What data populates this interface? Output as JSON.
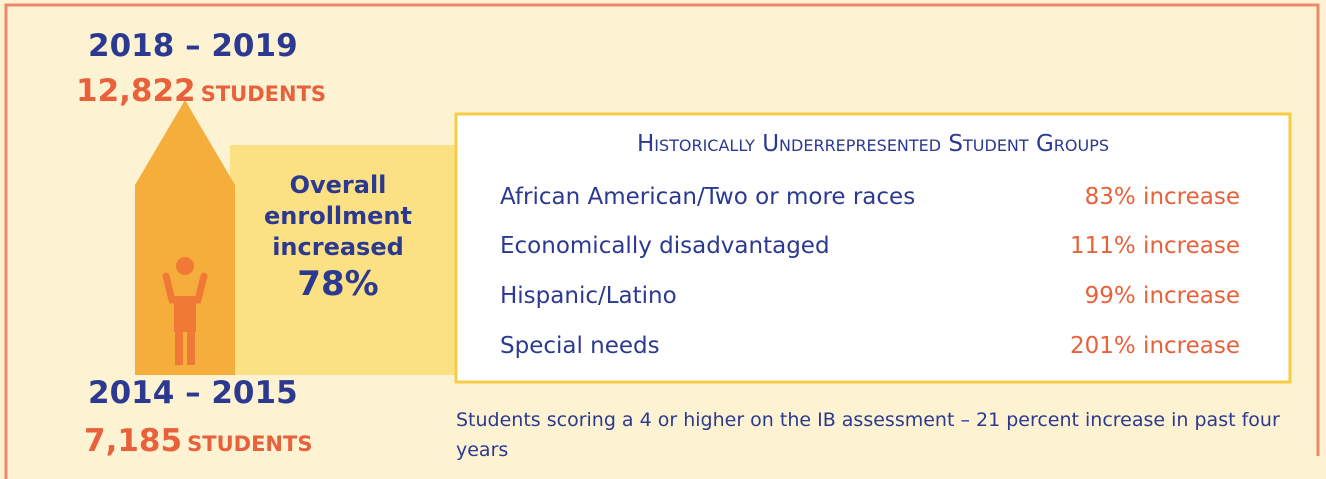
{
  "recent": {
    "years": "2018 – 2019",
    "count": "12,822",
    "unit": "STUDENTS"
  },
  "earlier": {
    "years": "2014 – 2015",
    "count": "7,185",
    "unit": "STUDENTS"
  },
  "overall": {
    "lines": [
      "Overall",
      "enrollment",
      "increased"
    ],
    "value": "78%"
  },
  "groups": {
    "title": "Historically Underrepresented Student Groups",
    "rows": [
      [
        "African American/Two or more races",
        "83% increase"
      ],
      [
        "Economically disadvantaged",
        "111% increase"
      ],
      [
        "Hispanic/Latino",
        "99% increase"
      ],
      [
        "Special needs",
        "201% increase"
      ]
    ]
  },
  "footnote": "Students scoring a 4 or higher on the IB assessment – 21 percent increase in past four years"
}
